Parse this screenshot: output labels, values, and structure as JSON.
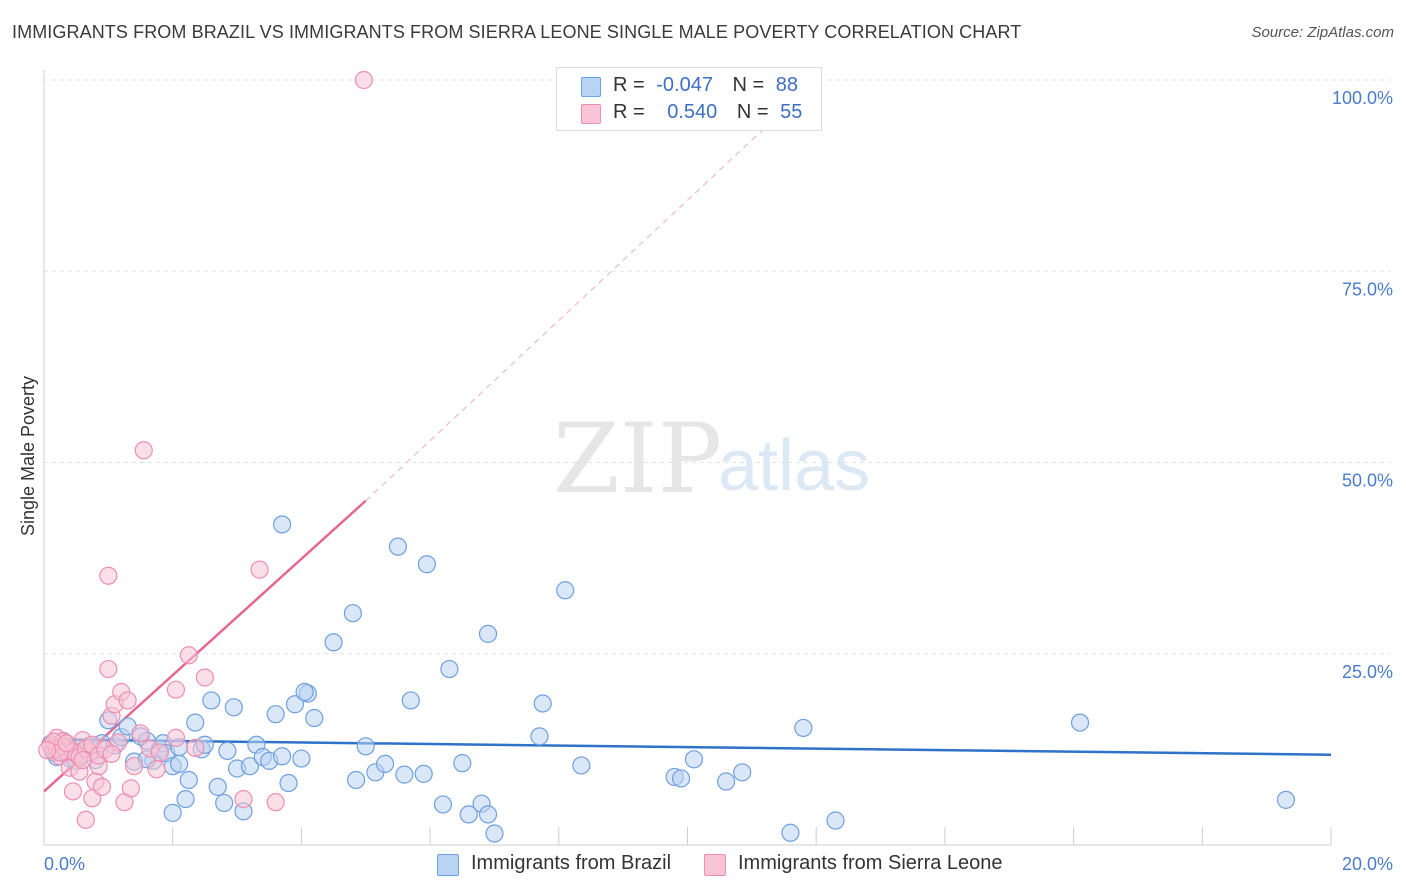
{
  "header": {
    "title": "IMMIGRANTS FROM BRAZIL VS IMMIGRANTS FROM SIERRA LEONE SINGLE MALE POVERTY CORRELATION CHART",
    "source": "Source: ZipAtlas.com"
  },
  "watermark": {
    "part1": "ZIP",
    "part2": "atlas"
  },
  "legend": {
    "rows": [
      {
        "r_label": "R =",
        "r_value": "-0.047",
        "n_label": "N =",
        "n_value": "88"
      },
      {
        "r_label": "R =",
        "r_value": "0.540",
        "n_label": "N =",
        "n_value": "55"
      }
    ]
  },
  "colors": {
    "brazil_fill": "#b9d3f3",
    "brazil_stroke": "#6fa0e0",
    "brazil_line": "#2f72c9",
    "sierra_fill": "#f8c5d6",
    "sierra_stroke": "#ee8fb0",
    "sierra_line": "#e5688f",
    "tick": "#4a7cc9",
    "grid": "#e3e3e3"
  },
  "chart_data": {
    "type": "scatter",
    "title": "IMMIGRANTS FROM BRAZIL VS IMMIGRANTS FROM SIERRA LEONE SINGLE MALE POVERTY CORRELATION CHART",
    "xlabel": "",
    "ylabel": "Single Male Poverty",
    "xlim": [
      0,
      20
    ],
    "ylim": [
      0,
      100
    ],
    "x_tick_labels": [
      "0.0%",
      "20.0%"
    ],
    "y_ticks": [
      25,
      50,
      75,
      100
    ],
    "y_tick_labels": [
      "25.0%",
      "50.0%",
      "75.0%",
      "100.0%"
    ],
    "legend_position": "top-center",
    "series": [
      {
        "name": "Immigrants from Brazil",
        "r": -0.047,
        "n": 88,
        "trend": {
          "x0": 0,
          "y0": 13.8,
          "x1": 20,
          "y1": 11.8
        },
        "points": [
          [
            0.1,
            13.2
          ],
          [
            0.15,
            12.1
          ],
          [
            0.2,
            11.5
          ],
          [
            0.25,
            12.8
          ],
          [
            0.3,
            13.5
          ],
          [
            0.35,
            12.0
          ],
          [
            0.4,
            11.3
          ],
          [
            0.45,
            12.4
          ],
          [
            0.5,
            11.0
          ],
          [
            0.55,
            12.6
          ],
          [
            0.6,
            11.8
          ],
          [
            0.7,
            12.9
          ],
          [
            0.8,
            11.1
          ],
          [
            0.9,
            13.3
          ],
          [
            1.0,
            16.3
          ],
          [
            1.1,
            13.0
          ],
          [
            1.2,
            14.1
          ],
          [
            1.3,
            15.5
          ],
          [
            1.4,
            10.9
          ],
          [
            1.5,
            14.2
          ],
          [
            1.6,
            13.6
          ],
          [
            1.7,
            11.0
          ],
          [
            1.8,
            12.5
          ],
          [
            1.85,
            13.3
          ],
          [
            1.9,
            12.0
          ],
          [
            2.0,
            10.3
          ],
          [
            2.0,
            4.2
          ],
          [
            2.1,
            10.6
          ],
          [
            2.2,
            6.0
          ],
          [
            2.25,
            8.5
          ],
          [
            2.35,
            16.0
          ],
          [
            2.45,
            12.5
          ],
          [
            2.5,
            13.1
          ],
          [
            2.6,
            18.9
          ],
          [
            2.7,
            7.6
          ],
          [
            2.8,
            5.5
          ],
          [
            2.85,
            12.3
          ],
          [
            2.95,
            18.0
          ],
          [
            3.0,
            10.0
          ],
          [
            3.1,
            4.4
          ],
          [
            3.2,
            10.3
          ],
          [
            3.3,
            13.1
          ],
          [
            3.4,
            11.5
          ],
          [
            3.5,
            11.0
          ],
          [
            3.6,
            17.1
          ],
          [
            3.7,
            11.6
          ],
          [
            3.8,
            8.1
          ],
          [
            3.9,
            18.4
          ],
          [
            4.0,
            11.3
          ],
          [
            4.1,
            19.8
          ],
          [
            4.2,
            16.6
          ],
          [
            4.5,
            26.5
          ],
          [
            4.8,
            30.3
          ],
          [
            4.85,
            8.5
          ],
          [
            5.0,
            12.9
          ],
          [
            5.15,
            9.5
          ],
          [
            5.3,
            10.6
          ],
          [
            5.6,
            9.2
          ],
          [
            5.7,
            18.9
          ],
          [
            5.9,
            9.3
          ],
          [
            6.2,
            5.3
          ],
          [
            6.3,
            23.0
          ],
          [
            6.5,
            10.7
          ],
          [
            6.6,
            4.0
          ],
          [
            6.8,
            5.4
          ],
          [
            6.9,
            4.0
          ],
          [
            7.0,
            1.5
          ],
          [
            7.7,
            14.2
          ],
          [
            7.75,
            18.5
          ],
          [
            8.1,
            33.3
          ],
          [
            8.35,
            10.4
          ],
          [
            9.8,
            8.9
          ],
          [
            9.9,
            8.7
          ],
          [
            10.1,
            11.2
          ],
          [
            10.6,
            8.3
          ],
          [
            10.85,
            9.5
          ],
          [
            11.6,
            1.6
          ],
          [
            11.8,
            15.3
          ],
          [
            12.3,
            3.2
          ],
          [
            16.1,
            16.0
          ],
          [
            19.3,
            5.9
          ],
          [
            3.7,
            41.9
          ],
          [
            5.5,
            39.0
          ],
          [
            5.95,
            36.7
          ],
          [
            6.9,
            27.6
          ],
          [
            4.05,
            20.0
          ],
          [
            2.1,
            12.8
          ],
          [
            1.6,
            11.2
          ]
        ]
      },
      {
        "name": "Immigrants from Sierra Leone",
        "r": 0.54,
        "n": 55,
        "trend": {
          "x0": 0,
          "y0": 7.0,
          "x1": 5.0,
          "y1": 45.0
        },
        "trend_extension": {
          "x0": 5.0,
          "y0": 45.0,
          "x1": 12.0,
          "y1": 100.0
        },
        "points": [
          [
            0.1,
            13.0
          ],
          [
            0.15,
            12.4
          ],
          [
            0.2,
            14.0
          ],
          [
            0.25,
            11.6
          ],
          [
            0.3,
            13.6
          ],
          [
            0.35,
            12.2
          ],
          [
            0.4,
            10.1
          ],
          [
            0.45,
            7.0
          ],
          [
            0.5,
            11.9
          ],
          [
            0.55,
            9.6
          ],
          [
            0.6,
            13.7
          ],
          [
            0.65,
            3.3
          ],
          [
            0.7,
            12.1
          ],
          [
            0.75,
            6.1
          ],
          [
            0.8,
            8.3
          ],
          [
            0.85,
            10.3
          ],
          [
            0.9,
            7.6
          ],
          [
            1.0,
            23.0
          ],
          [
            1.05,
            16.9
          ],
          [
            1.1,
            18.4
          ],
          [
            1.15,
            13.4
          ],
          [
            1.2,
            20.0
          ],
          [
            1.25,
            5.6
          ],
          [
            1.3,
            18.9
          ],
          [
            1.35,
            7.4
          ],
          [
            1.4,
            10.3
          ],
          [
            1.5,
            14.6
          ],
          [
            1.55,
            51.6
          ],
          [
            1.65,
            12.6
          ],
          [
            1.75,
            9.9
          ],
          [
            1.8,
            12.1
          ],
          [
            2.05,
            20.3
          ],
          [
            2.05,
            14.0
          ],
          [
            2.25,
            24.8
          ],
          [
            2.5,
            21.9
          ],
          [
            2.35,
            12.7
          ],
          [
            3.35,
            36.0
          ],
          [
            3.6,
            5.6
          ],
          [
            3.1,
            6.0
          ],
          [
            4.97,
            100.0
          ],
          [
            1.0,
            35.2
          ],
          [
            0.2,
            12.6
          ],
          [
            0.3,
            12.9
          ],
          [
            0.45,
            12.2
          ],
          [
            0.55,
            11.5
          ],
          [
            0.65,
            12.6
          ],
          [
            0.75,
            13.1
          ],
          [
            0.85,
            11.7
          ],
          [
            0.95,
            12.5
          ],
          [
            1.05,
            11.9
          ],
          [
            0.15,
            13.5
          ],
          [
            0.25,
            12.1
          ],
          [
            0.35,
            13.3
          ],
          [
            0.05,
            12.4
          ],
          [
            0.6,
            11.1
          ]
        ]
      }
    ]
  },
  "bottom_legend": {
    "items": [
      "Immigrants from Brazil",
      "Immigrants from Sierra Leone"
    ]
  }
}
